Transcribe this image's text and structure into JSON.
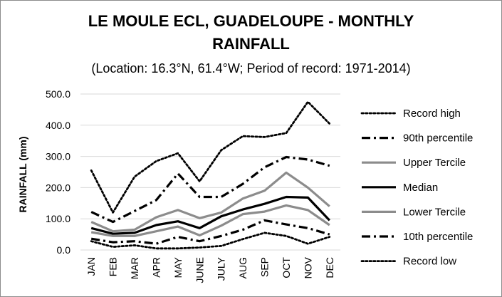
{
  "chart_data": {
    "type": "line",
    "title_line1": "LE MOULE ECL, GUADELOUPE - MONTHLY",
    "title_line2": "RAINFALL",
    "subtitle": "(Location: 16.3°N, 61.4°W; Period of record: 1971-2014)",
    "xlabel": "",
    "ylabel": "RAINFALL (mm)",
    "ylim": [
      0,
      500
    ],
    "yticks": [
      "0.0",
      "100.0",
      "200.0",
      "300.0",
      "400.0",
      "500.0"
    ],
    "grid": true,
    "legend_position": "right",
    "categories": [
      "JAN",
      "FEB",
      "MAR",
      "APR",
      "MAY",
      "JUNE",
      "JULY",
      "AUG",
      "SEP",
      "OCT",
      "NOV",
      "DEC"
    ],
    "series": [
      {
        "name": "Record high",
        "color": "#000000",
        "style": "dotted",
        "values": [
          255,
          120,
          235,
          285,
          310,
          220,
          320,
          365,
          362,
          375,
          475,
          405
        ]
      },
      {
        "name": "90th percentile",
        "color": "#000000",
        "style": "dashdot",
        "values": [
          122,
          90,
          125,
          160,
          245,
          170,
          170,
          212,
          265,
          298,
          290,
          270
        ]
      },
      {
        "name": "Upper Tercile",
        "color": "#8c8c8c",
        "style": "solid",
        "values": [
          90,
          60,
          65,
          105,
          128,
          102,
          120,
          165,
          190,
          248,
          200,
          140
        ]
      },
      {
        "name": "Median",
        "color": "#000000",
        "style": "solid",
        "values": [
          70,
          52,
          55,
          80,
          92,
          70,
          108,
          130,
          148,
          170,
          168,
          95
        ]
      },
      {
        "name": "Lower Tercile",
        "color": "#8c8c8c",
        "style": "solid",
        "values": [
          57,
          45,
          45,
          60,
          75,
          47,
          78,
          115,
          123,
          143,
          128,
          80
        ]
      },
      {
        "name": "10th percentile",
        "color": "#000000",
        "style": "dashdot",
        "values": [
          36,
          25,
          28,
          20,
          42,
          28,
          45,
          65,
          95,
          82,
          70,
          50
        ]
      },
      {
        "name": "Record low",
        "color": "#000000",
        "style": "dotted",
        "values": [
          28,
          10,
          15,
          5,
          5,
          8,
          13,
          35,
          55,
          45,
          20,
          42
        ]
      }
    ]
  }
}
